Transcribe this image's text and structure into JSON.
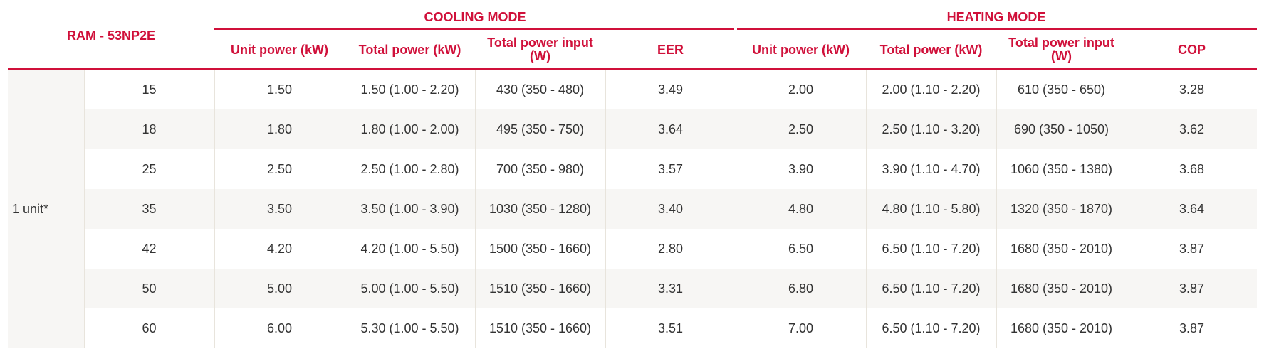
{
  "header": {
    "model": "RAM - 53NP2E",
    "groups": [
      "COOLING MODE",
      "HEATING MODE"
    ],
    "columns": [
      "Unit power (kW)",
      "Total power (kW)",
      "Total power input (W)",
      "EER",
      "Unit power (kW)",
      "Total power (kW)",
      "Total power input (W)",
      "COP"
    ]
  },
  "table": {
    "group_label": "1 unit*",
    "rows": [
      [
        "15",
        "1.50",
        "1.50 (1.00 - 2.20)",
        "430 (350 - 480)",
        "3.49",
        "2.00",
        "2.00 (1.10 - 2.20)",
        "610 (350 - 650)",
        "3.28"
      ],
      [
        "18",
        "1.80",
        "1.80 (1.00 - 2.00)",
        "495 (350 - 750)",
        "3.64",
        "2.50",
        "2.50 (1.10 - 3.20)",
        "690 (350 - 1050)",
        "3.62"
      ],
      [
        "25",
        "2.50",
        "2.50 (1.00 - 2.80)",
        "700 (350 - 980)",
        "3.57",
        "3.90",
        "3.90 (1.10 - 4.70)",
        "1060 (350 - 1380)",
        "3.68"
      ],
      [
        "35",
        "3.50",
        "3.50 (1.00 - 3.90)",
        "1030 (350 - 1280)",
        "3.40",
        "4.80",
        "4.80 (1.10 - 5.80)",
        "1320 (350 - 1870)",
        "3.64"
      ],
      [
        "42",
        "4.20",
        "4.20 (1.00 - 5.50)",
        "1500 (350 - 1660)",
        "2.80",
        "6.50",
        "6.50 (1.10 - 7.20)",
        "1680 (350 - 2010)",
        "3.87"
      ],
      [
        "50",
        "5.00",
        "5.00 (1.00 - 5.50)",
        "1510 (350 - 1660)",
        "3.31",
        "6.80",
        "6.50 (1.10 - 7.20)",
        "1680 (350 - 2010)",
        "3.87"
      ],
      [
        "60",
        "6.00",
        "5.30 (1.00 - 5.50)",
        "1510 (350 - 1660)",
        "3.51",
        "7.00",
        "6.50 (1.10 - 7.20)",
        "1680 (350 - 2010)",
        "3.87"
      ]
    ]
  }
}
